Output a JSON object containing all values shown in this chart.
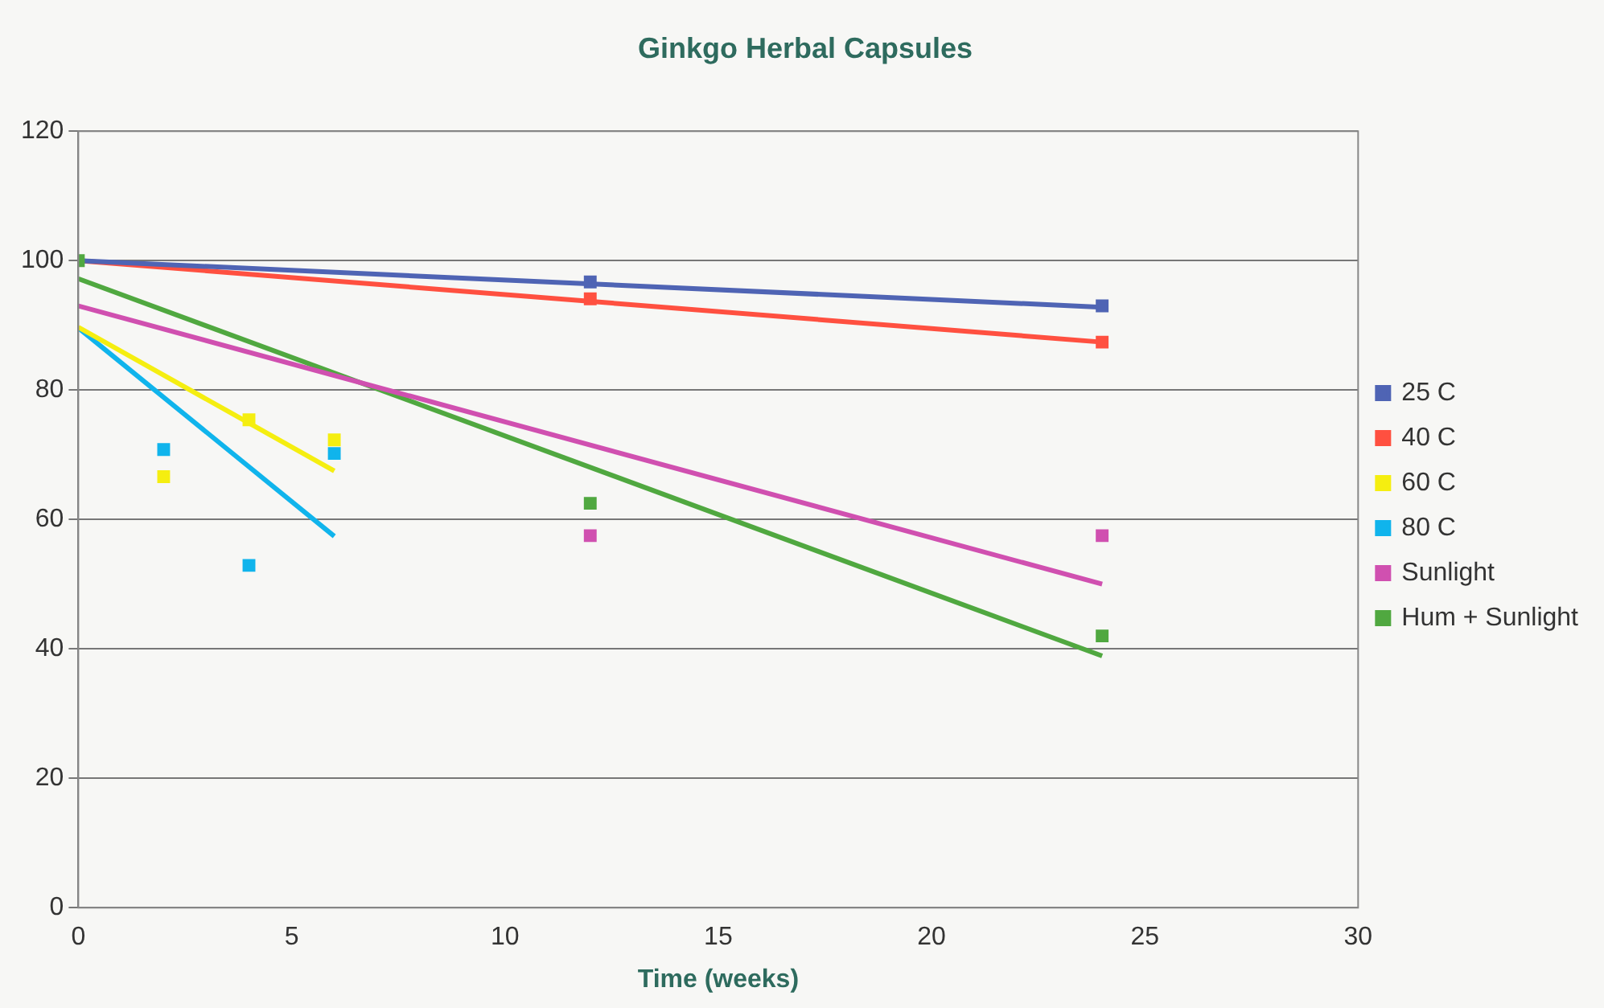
{
  "chart_data": {
    "type": "scatter",
    "title": "Ginkgo Herbal Capsules",
    "xlabel": "Time (weeks)",
    "xlim": [
      0,
      30
    ],
    "xticks": [
      0,
      5,
      10,
      15,
      20,
      25,
      30
    ],
    "ylim": [
      0,
      120
    ],
    "yticks": [
      0,
      20,
      40,
      60,
      80,
      100,
      120
    ],
    "grid": "y",
    "legend": "right",
    "marker": "square",
    "series": [
      {
        "name": "25 C",
        "color": "#4f64b4",
        "x": [
          12,
          24
        ],
        "values": [
          96.7,
          93
        ]
      },
      {
        "name": "40 C",
        "color": "#ff5040",
        "x": [
          12,
          24
        ],
        "values": [
          94.1,
          87.4
        ]
      },
      {
        "name": "60 C",
        "color": "#f5ee10",
        "x": [
          2,
          4,
          6
        ],
        "values": [
          66.6,
          75.4,
          72.3
        ]
      },
      {
        "name": "80 C",
        "color": "#10b4ec",
        "x": [
          2,
          4,
          6
        ],
        "values": [
          70.8,
          52.9,
          70.2
        ]
      },
      {
        "name": "Sunlight",
        "color": "#d050b0",
        "x": [
          12,
          24
        ],
        "values": [
          57.5,
          57.5
        ]
      },
      {
        "name": "Hum + Sunlight",
        "color": "#50a840",
        "x": [
          0,
          12,
          24
        ],
        "values": [
          100,
          62.5,
          42
        ]
      },
      {
        "type": "line",
        "marker": "none",
        "color": "#4f64b4",
        "x": [
          0,
          24
        ],
        "values": [
          100,
          92.8
        ]
      },
      {
        "type": "line",
        "marker": "none",
        "color": "#ff5040",
        "x": [
          0,
          24
        ],
        "values": [
          100,
          87.4
        ]
      },
      {
        "type": "line",
        "marker": "none",
        "color": "#f5ee10",
        "x": [
          0,
          6
        ],
        "values": [
          89.7,
          67.5
        ]
      },
      {
        "type": "line",
        "marker": "none",
        "color": "#10b4ec",
        "x": [
          0,
          6
        ],
        "values": [
          89.6,
          57.4
        ]
      },
      {
        "type": "line",
        "marker": "none",
        "color": "#d050b0",
        "x": [
          0,
          24
        ],
        "values": [
          93,
          50
        ]
      },
      {
        "type": "line",
        "marker": "none",
        "color": "#50a840",
        "x": [
          0,
          24
        ],
        "values": [
          97.2,
          38.9
        ]
      }
    ]
  }
}
